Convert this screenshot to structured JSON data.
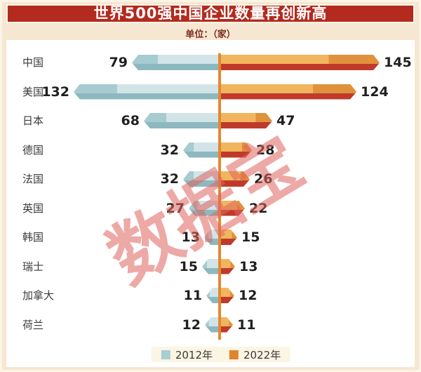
{
  "header": {
    "title": "世界500强中国企业数量再创新高",
    "unit_label": "单位：（家）"
  },
  "watermark_text": "数据宝",
  "chart_data": {
    "type": "bar",
    "variant": "horizontal-diverging",
    "title": "世界500强中国企业数量再创新高",
    "unit": "家",
    "categories": [
      "中国",
      "美国",
      "日本",
      "德国",
      "法国",
      "英国",
      "韩国",
      "瑞士",
      "加拿大",
      "荷兰"
    ],
    "series": [
      {
        "name": "2012年",
        "color": "#a8cdd3",
        "values": [
          79,
          132,
          68,
          32,
          32,
          27,
          13,
          15,
          11,
          12
        ]
      },
      {
        "name": "2022年",
        "color": "#e0832d",
        "values": [
          145,
          124,
          47,
          28,
          26,
          22,
          15,
          13,
          12,
          11
        ]
      }
    ],
    "legend_position": "bottom",
    "grid": false,
    "value_labels_shown": true
  },
  "colors": {
    "page_bg": "#f6e7d2",
    "frame": "#fcf5e6",
    "panel_bg": "#ffffff",
    "banner_bg": "#b32a1f",
    "banner_text": "#ffffff",
    "unit_text": "#7e2e1e",
    "label_text": "#3a3a3a",
    "value_text": "#1f1f1f",
    "axis": "#e5872e",
    "teal_top_light": "#d2e4e7",
    "teal_top_dark": "#a6cbd1",
    "teal_bottom": "#8db8bf",
    "orange_top_light": "#f1b55e",
    "orange_top_dark": "#e0913b",
    "orange_bottom": "#bf3a2a",
    "watermark": "#e0645e",
    "legend_bg": "#fbf5e3"
  }
}
